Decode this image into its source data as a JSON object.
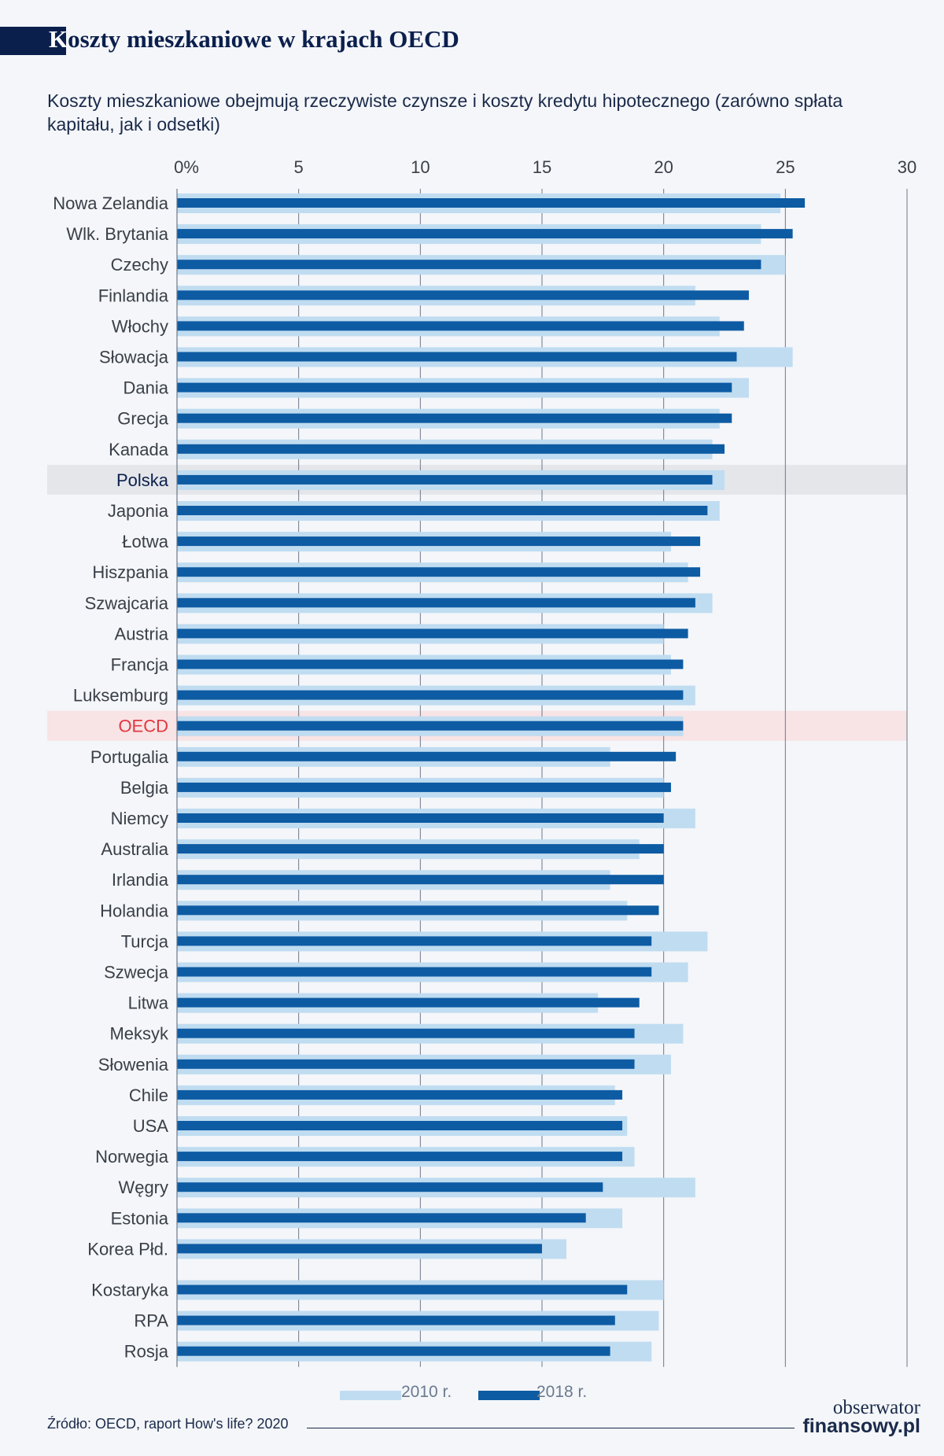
{
  "header": {
    "title_first_letter": "K",
    "title_rest": "oszty mieszkaniowe w krajach OECD",
    "subtitle": "Koszty mieszkaniowe obejmują rzeczywiste czynsze i koszty kredytu hipotecznego (zarówno spłata kapitału, jak i odsetki)"
  },
  "footer": {
    "source": "Źródło: OECD, raport How's life? 2020",
    "logo_line1": "obserwator",
    "logo_line2": "finansowy.pl"
  },
  "colors": {
    "series_2010": "#c0dcf1",
    "series_2018": "#0d5ba3",
    "highlight_polska_band": "#e4e6ea",
    "highlight_oecd_band": "#f8e3e5",
    "polska_label": "#0b1f4d",
    "oecd_label": "#e2373f",
    "label_text": "#3a3f48"
  },
  "chart_data": {
    "type": "bar",
    "orientation": "horizontal",
    "xlim": [
      0,
      30
    ],
    "x_ticks": [
      "0%",
      "5",
      "10",
      "15",
      "20",
      "25",
      "30"
    ],
    "x_tick_values": [
      0,
      5,
      10,
      15,
      20,
      25,
      30
    ],
    "grid": true,
    "legend_position": "bottom-center",
    "categories": [
      "Nowa Zelandia",
      "Wlk. Brytania",
      "Czechy",
      "Finlandia",
      "Włochy",
      "Słowacja",
      "Dania",
      "Grecja",
      "Kanada",
      "Polska",
      "Japonia",
      "Łotwa",
      "Hiszpania",
      "Szwajcaria",
      "Austria",
      "Francja",
      "Luksemburg",
      "OECD",
      "Portugalia",
      "Belgia",
      "Niemcy",
      "Australia",
      "Irlandia",
      "Holandia",
      "Turcja",
      "Szwecja",
      "Litwa",
      "Meksyk",
      "Słowenia",
      "Chile",
      "USA",
      "Norwegia",
      "Węgry",
      "Estonia",
      "Korea Płd.",
      "Kostaryka",
      "RPA",
      "Rosja"
    ],
    "highlighted": [
      "Polska",
      "OECD"
    ],
    "series": [
      {
        "name": "2010 r.",
        "values": [
          24.8,
          24.0,
          25.0,
          21.3,
          22.3,
          25.3,
          23.5,
          22.3,
          22.0,
          22.5,
          22.3,
          20.3,
          21.0,
          22.0,
          20.0,
          20.3,
          21.3,
          20.8,
          17.8,
          20.0,
          21.3,
          19.0,
          17.8,
          18.5,
          21.8,
          21.0,
          17.3,
          20.8,
          20.3,
          18.0,
          18.5,
          18.8,
          21.3,
          18.3,
          16.0,
          20.0,
          19.8,
          19.5
        ]
      },
      {
        "name": "2018 r.",
        "values": [
          25.8,
          25.3,
          24.0,
          23.5,
          23.3,
          23.0,
          22.8,
          22.8,
          22.5,
          22.0,
          21.8,
          21.5,
          21.5,
          21.3,
          21.0,
          20.8,
          20.8,
          20.8,
          20.5,
          20.3,
          20.0,
          20.0,
          20.0,
          19.8,
          19.5,
          19.5,
          19.0,
          18.8,
          18.8,
          18.3,
          18.3,
          18.3,
          17.5,
          16.8,
          15.0,
          18.5,
          18.0,
          17.8
        ]
      }
    ]
  }
}
